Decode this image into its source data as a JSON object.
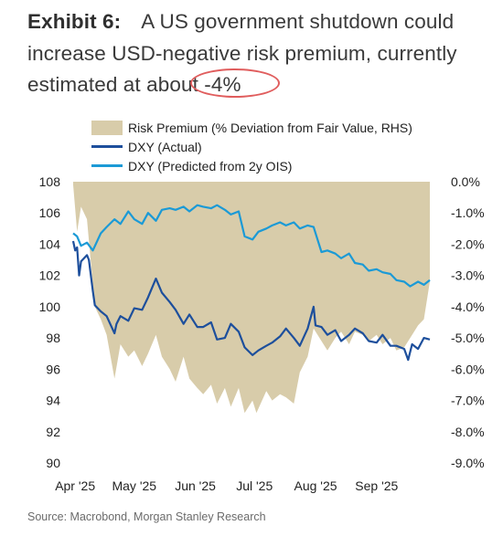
{
  "title": {
    "label": "Exhibit 6:",
    "line1_rest": "A US government shutdown could",
    "line2": "increase USD-negative risk premium, currently",
    "line3_prefix": "estimated at about ",
    "highlight": "-4%"
  },
  "source": "Source: Macrobond, Morgan Stanley Research",
  "colors": {
    "risk_premium_fill": "#d8ccaa",
    "dxy_actual": "#1d4f9c",
    "dxy_predicted": "#1b9ad6",
    "highlight_ring": "#e05d5d"
  },
  "chart_data": {
    "type": "line",
    "title": "",
    "x_start": "2025-03-31",
    "x_end": "2025-09-28",
    "x_tick_labels": [
      "Apr '25",
      "May '25",
      "Jun '25",
      "Jul '25",
      "Aug '25",
      "Sep '25"
    ],
    "x_tick_dates": [
      "2025-04-01",
      "2025-05-01",
      "2025-06-01",
      "2025-07-01",
      "2025-08-01",
      "2025-09-01"
    ],
    "y_left": {
      "min": 90,
      "max": 108,
      "ticks": [
        "90",
        "92",
        "94",
        "96",
        "98",
        "100",
        "102",
        "104",
        "106",
        "108"
      ]
    },
    "y_right": {
      "min": -9.0,
      "max": 0.0,
      "ticks": [
        "0.0%",
        "-1.0%",
        "-2.0%",
        "-3.0%",
        "-4.0%",
        "-5.0%",
        "-6.0%",
        "-7.0%",
        "-8.0%",
        "-9.0%"
      ]
    },
    "grid": false,
    "legend_position": "top-left",
    "series": [
      {
        "name": "Risk Premium (% Deviation from Fair Value, RHS)",
        "kind": "area",
        "axis": "right",
        "points": [
          [
            "2025-03-31",
            -0.1
          ],
          [
            "2025-04-02",
            -1.6
          ],
          [
            "2025-04-04",
            -0.8
          ],
          [
            "2025-04-07",
            -1.2
          ],
          [
            "2025-04-09",
            -2.6
          ],
          [
            "2025-04-11",
            -4.0
          ],
          [
            "2025-04-14",
            -4.4
          ],
          [
            "2025-04-17",
            -4.9
          ],
          [
            "2025-04-21",
            -6.3
          ],
          [
            "2025-04-24",
            -5.2
          ],
          [
            "2025-04-28",
            -5.6
          ],
          [
            "2025-05-01",
            -5.4
          ],
          [
            "2025-05-05",
            -5.9
          ],
          [
            "2025-05-08",
            -5.5
          ],
          [
            "2025-05-12",
            -4.9
          ],
          [
            "2025-05-15",
            -5.6
          ],
          [
            "2025-05-19",
            -6.0
          ],
          [
            "2025-05-22",
            -6.4
          ],
          [
            "2025-05-26",
            -5.6
          ],
          [
            "2025-05-29",
            -6.3
          ],
          [
            "2025-06-02",
            -6.6
          ],
          [
            "2025-06-05",
            -6.8
          ],
          [
            "2025-06-09",
            -6.5
          ],
          [
            "2025-06-12",
            -7.1
          ],
          [
            "2025-06-16",
            -6.6
          ],
          [
            "2025-06-19",
            -7.2
          ],
          [
            "2025-06-23",
            -6.6
          ],
          [
            "2025-06-26",
            -7.4
          ],
          [
            "2025-06-30",
            -7.0
          ],
          [
            "2025-07-02",
            -7.4
          ],
          [
            "2025-07-07",
            -6.7
          ],
          [
            "2025-07-10",
            -7.0
          ],
          [
            "2025-07-14",
            -6.8
          ],
          [
            "2025-07-17",
            -6.9
          ],
          [
            "2025-07-21",
            -7.1
          ],
          [
            "2025-07-24",
            -6.1
          ],
          [
            "2025-07-28",
            -5.6
          ],
          [
            "2025-07-31",
            -4.7
          ],
          [
            "2025-08-04",
            -5.1
          ],
          [
            "2025-08-07",
            -5.4
          ],
          [
            "2025-08-11",
            -5.0
          ],
          [
            "2025-08-14",
            -4.8
          ],
          [
            "2025-08-18",
            -5.2
          ],
          [
            "2025-08-21",
            -4.8
          ],
          [
            "2025-08-25",
            -4.9
          ],
          [
            "2025-08-28",
            -5.1
          ],
          [
            "2025-09-01",
            -4.9
          ],
          [
            "2025-09-04",
            -5.2
          ],
          [
            "2025-09-08",
            -5.0
          ],
          [
            "2025-09-11",
            -5.4
          ],
          [
            "2025-09-15",
            -5.3
          ],
          [
            "2025-09-18",
            -5.0
          ],
          [
            "2025-09-22",
            -4.6
          ],
          [
            "2025-09-25",
            -4.4
          ],
          [
            "2025-09-28",
            -3.2
          ]
        ]
      },
      {
        "name": "DXY (Actual)",
        "kind": "line",
        "axis": "left",
        "points": [
          [
            "2025-03-31",
            104.2
          ],
          [
            "2025-04-01",
            103.6
          ],
          [
            "2025-04-02",
            103.8
          ],
          [
            "2025-04-03",
            102.0
          ],
          [
            "2025-04-04",
            102.9
          ],
          [
            "2025-04-07",
            103.3
          ],
          [
            "2025-04-08",
            103.0
          ],
          [
            "2025-04-10",
            101.0
          ],
          [
            "2025-04-11",
            100.1
          ],
          [
            "2025-04-14",
            99.7
          ],
          [
            "2025-04-17",
            99.4
          ],
          [
            "2025-04-21",
            98.3
          ],
          [
            "2025-04-22",
            98.9
          ],
          [
            "2025-04-24",
            99.4
          ],
          [
            "2025-04-28",
            99.1
          ],
          [
            "2025-05-01",
            99.9
          ],
          [
            "2025-05-05",
            99.8
          ],
          [
            "2025-05-08",
            100.6
          ],
          [
            "2025-05-12",
            101.8
          ],
          [
            "2025-05-15",
            100.9
          ],
          [
            "2025-05-19",
            100.3
          ],
          [
            "2025-05-22",
            99.8
          ],
          [
            "2025-05-26",
            98.9
          ],
          [
            "2025-05-29",
            99.5
          ],
          [
            "2025-06-02",
            98.7
          ],
          [
            "2025-06-05",
            98.7
          ],
          [
            "2025-06-09",
            99.0
          ],
          [
            "2025-06-12",
            97.9
          ],
          [
            "2025-06-16",
            98.0
          ],
          [
            "2025-06-19",
            98.9
          ],
          [
            "2025-06-23",
            98.4
          ],
          [
            "2025-06-26",
            97.4
          ],
          [
            "2025-06-30",
            96.9
          ],
          [
            "2025-07-03",
            97.2
          ],
          [
            "2025-07-07",
            97.5
          ],
          [
            "2025-07-10",
            97.7
          ],
          [
            "2025-07-14",
            98.1
          ],
          [
            "2025-07-17",
            98.6
          ],
          [
            "2025-07-21",
            98.0
          ],
          [
            "2025-07-24",
            97.5
          ],
          [
            "2025-07-28",
            98.6
          ],
          [
            "2025-07-31",
            100.0
          ],
          [
            "2025-08-01",
            98.8
          ],
          [
            "2025-08-04",
            98.7
          ],
          [
            "2025-08-07",
            98.2
          ],
          [
            "2025-08-11",
            98.5
          ],
          [
            "2025-08-14",
            97.8
          ],
          [
            "2025-08-18",
            98.2
          ],
          [
            "2025-08-21",
            98.6
          ],
          [
            "2025-08-25",
            98.3
          ],
          [
            "2025-08-28",
            97.8
          ],
          [
            "2025-09-01",
            97.7
          ],
          [
            "2025-09-04",
            98.2
          ],
          [
            "2025-09-08",
            97.5
          ],
          [
            "2025-09-11",
            97.5
          ],
          [
            "2025-09-15",
            97.3
          ],
          [
            "2025-09-17",
            96.6
          ],
          [
            "2025-09-19",
            97.6
          ],
          [
            "2025-09-22",
            97.3
          ],
          [
            "2025-09-25",
            98.0
          ],
          [
            "2025-09-28",
            97.9
          ]
        ]
      },
      {
        "name": "DXY (Predicted from 2y OIS)",
        "kind": "line",
        "axis": "left",
        "points": [
          [
            "2025-03-31",
            104.7
          ],
          [
            "2025-04-02",
            104.5
          ],
          [
            "2025-04-04",
            103.9
          ],
          [
            "2025-04-07",
            104.1
          ],
          [
            "2025-04-10",
            103.6
          ],
          [
            "2025-04-14",
            104.7
          ],
          [
            "2025-04-17",
            105.1
          ],
          [
            "2025-04-21",
            105.6
          ],
          [
            "2025-04-24",
            105.3
          ],
          [
            "2025-04-28",
            106.1
          ],
          [
            "2025-05-01",
            105.6
          ],
          [
            "2025-05-05",
            105.3
          ],
          [
            "2025-05-08",
            106.0
          ],
          [
            "2025-05-12",
            105.5
          ],
          [
            "2025-05-15",
            106.2
          ],
          [
            "2025-05-19",
            106.3
          ],
          [
            "2025-05-22",
            106.2
          ],
          [
            "2025-05-26",
            106.4
          ],
          [
            "2025-05-29",
            106.1
          ],
          [
            "2025-06-02",
            106.5
          ],
          [
            "2025-06-05",
            106.4
          ],
          [
            "2025-06-09",
            106.3
          ],
          [
            "2025-06-12",
            106.5
          ],
          [
            "2025-06-16",
            106.2
          ],
          [
            "2025-06-19",
            105.9
          ],
          [
            "2025-06-23",
            106.1
          ],
          [
            "2025-06-26",
            104.5
          ],
          [
            "2025-06-30",
            104.3
          ],
          [
            "2025-07-03",
            104.8
          ],
          [
            "2025-07-07",
            105.0
          ],
          [
            "2025-07-10",
            105.2
          ],
          [
            "2025-07-14",
            105.4
          ],
          [
            "2025-07-17",
            105.2
          ],
          [
            "2025-07-21",
            105.4
          ],
          [
            "2025-07-24",
            105.0
          ],
          [
            "2025-07-28",
            105.2
          ],
          [
            "2025-07-31",
            105.1
          ],
          [
            "2025-08-04",
            103.5
          ],
          [
            "2025-08-07",
            103.6
          ],
          [
            "2025-08-11",
            103.4
          ],
          [
            "2025-08-14",
            103.1
          ],
          [
            "2025-08-18",
            103.4
          ],
          [
            "2025-08-21",
            102.8
          ],
          [
            "2025-08-25",
            102.7
          ],
          [
            "2025-08-28",
            102.3
          ],
          [
            "2025-09-01",
            102.4
          ],
          [
            "2025-09-04",
            102.2
          ],
          [
            "2025-09-08",
            102.1
          ],
          [
            "2025-09-11",
            101.7
          ],
          [
            "2025-09-15",
            101.6
          ],
          [
            "2025-09-18",
            101.3
          ],
          [
            "2025-09-22",
            101.6
          ],
          [
            "2025-09-25",
            101.4
          ],
          [
            "2025-09-28",
            101.7
          ]
        ]
      }
    ]
  }
}
